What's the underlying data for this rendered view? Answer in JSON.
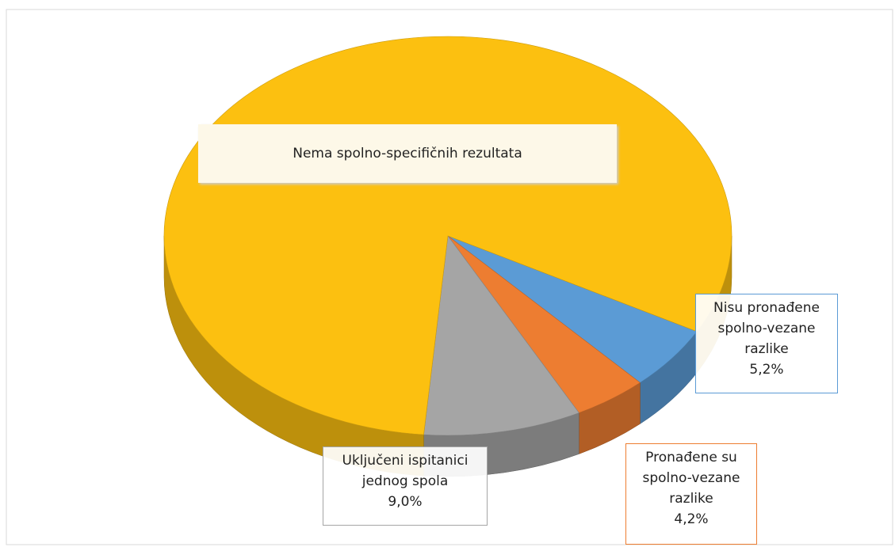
{
  "chart_data": {
    "type": "pie",
    "categories": [
      "Nisu pronađene spolno-vezane razlike",
      "Pronađene su spolno-vezane razlike",
      "Uključeni ispitanici jednog spola",
      "Nema spolno-specifičnih rezultata"
    ],
    "values": [
      5.2,
      4.2,
      9.0,
      81.6
    ],
    "value_labels": [
      "5,2%",
      "4,2%",
      "9,0%",
      null
    ],
    "colors": [
      "#5b9bd5",
      "#ed7d31",
      "#a5a5a5",
      "#fcc010"
    ]
  }
}
